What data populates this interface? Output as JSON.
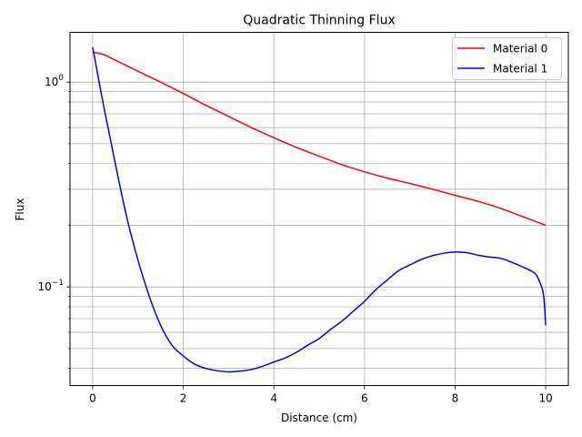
{
  "chart_data": {
    "type": "line",
    "title": "Quadratic Thinning Flux",
    "xlabel": "Distance (cm)",
    "ylabel": "Flux",
    "yscale": "log",
    "xlim": [
      -0.5,
      10.5
    ],
    "ylim": [
      0.033,
      1.75
    ],
    "grid": true,
    "legend_position": "top-right",
    "x_ticks": [
      0,
      2,
      4,
      6,
      8,
      10
    ],
    "x_tick_labels": [
      "0",
      "2",
      "4",
      "6",
      "8",
      "10"
    ],
    "y_major_ticks": [
      0.1,
      1.0
    ],
    "y_tick_labels": [
      {
        "base": "10",
        "exp": "−1"
      },
      {
        "base": "10",
        "exp": "0"
      }
    ],
    "y_minor_ticks": [
      0.04,
      0.05,
      0.06,
      0.07,
      0.08,
      0.09,
      0.2,
      0.3,
      0.4,
      0.5,
      0.6,
      0.7,
      0.8,
      0.9
    ],
    "series": [
      {
        "name": "Material 0",
        "color": "#ff0000",
        "x": [
          0,
          0.25,
          0.5,
          1,
          1.5,
          2,
          2.5,
          3,
          3.5,
          4,
          4.5,
          5,
          5.5,
          6,
          6.5,
          7,
          7.5,
          8,
          8.5,
          9,
          9.5,
          10
        ],
        "y": [
          1.4,
          1.36,
          1.28,
          1.13,
          1.0,
          0.88,
          0.77,
          0.68,
          0.6,
          0.535,
          0.48,
          0.435,
          0.395,
          0.365,
          0.34,
          0.32,
          0.3,
          0.28,
          0.262,
          0.242,
          0.22,
          0.2
        ]
      },
      {
        "name": "Material 1",
        "color": "#0000ff",
        "x": [
          0,
          0.25,
          0.5,
          0.75,
          1,
          1.25,
          1.5,
          1.75,
          2,
          2.25,
          2.5,
          2.75,
          3,
          3.25,
          3.5,
          3.75,
          4,
          4.25,
          4.5,
          4.75,
          5,
          5.25,
          5.5,
          5.75,
          6,
          6.25,
          6.5,
          6.75,
          7,
          7.25,
          7.5,
          7.75,
          8,
          8.25,
          8.5,
          8.75,
          9,
          9.25,
          9.5,
          9.75,
          9.85,
          9.95,
          10
        ],
        "y": [
          1.48,
          0.75,
          0.4,
          0.22,
          0.135,
          0.09,
          0.065,
          0.052,
          0.046,
          0.042,
          0.04,
          0.039,
          0.0385,
          0.0388,
          0.0395,
          0.041,
          0.043,
          0.045,
          0.048,
          0.052,
          0.056,
          0.062,
          0.068,
          0.076,
          0.085,
          0.097,
          0.108,
          0.12,
          0.128,
          0.136,
          0.142,
          0.146,
          0.148,
          0.147,
          0.143,
          0.14,
          0.138,
          0.132,
          0.125,
          0.117,
          0.108,
          0.092,
          0.065
        ]
      }
    ]
  }
}
